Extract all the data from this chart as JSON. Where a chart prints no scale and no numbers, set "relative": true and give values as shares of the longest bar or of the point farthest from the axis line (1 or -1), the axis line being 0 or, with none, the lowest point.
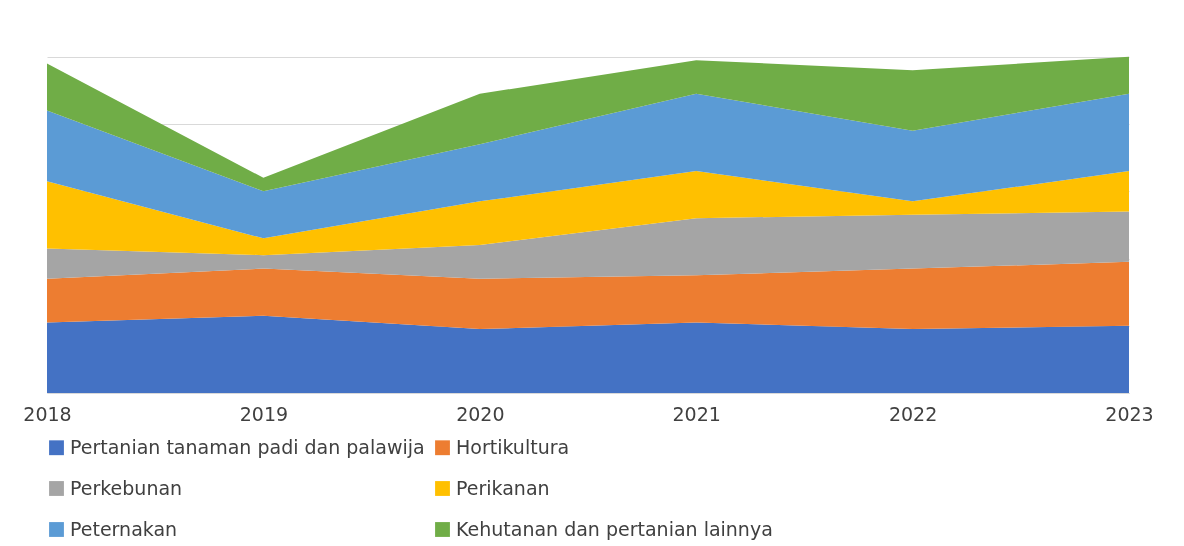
{
  "chart_data": {
    "type": "area",
    "stacked": true,
    "relative": true,
    "grid": "y",
    "legend": "bottom",
    "categories": [
      "2018",
      "2019",
      "2020",
      "2021",
      "2022",
      "2023"
    ],
    "series": [
      {
        "name": "Pertanian tanaman padi dan palawija",
        "color": "#4472c4",
        "values": [
          0.21,
          0.23,
          0.19,
          0.21,
          0.19,
          0.2
        ]
      },
      {
        "name": "Hortikultura",
        "color": "#ed7d31",
        "values": [
          0.13,
          0.14,
          0.15,
          0.14,
          0.18,
          0.19
        ]
      },
      {
        "name": "Perkebunan",
        "color": "#a5a5a5",
        "values": [
          0.09,
          0.04,
          0.1,
          0.17,
          0.16,
          0.15
        ]
      },
      {
        "name": "Perikanan",
        "color": "#ffc000",
        "values": [
          0.2,
          0.05,
          0.13,
          0.14,
          0.04,
          0.12
        ]
      },
      {
        "name": "Peternakan",
        "color": "#5b9bd5",
        "values": [
          0.21,
          0.14,
          0.17,
          0.23,
          0.21,
          0.23
        ]
      },
      {
        "name": "Kehutanan dan pertanian lainnya",
        "color": "#70ad47",
        "values": [
          0.14,
          0.04,
          0.15,
          0.1,
          0.18,
          0.11
        ]
      }
    ]
  }
}
